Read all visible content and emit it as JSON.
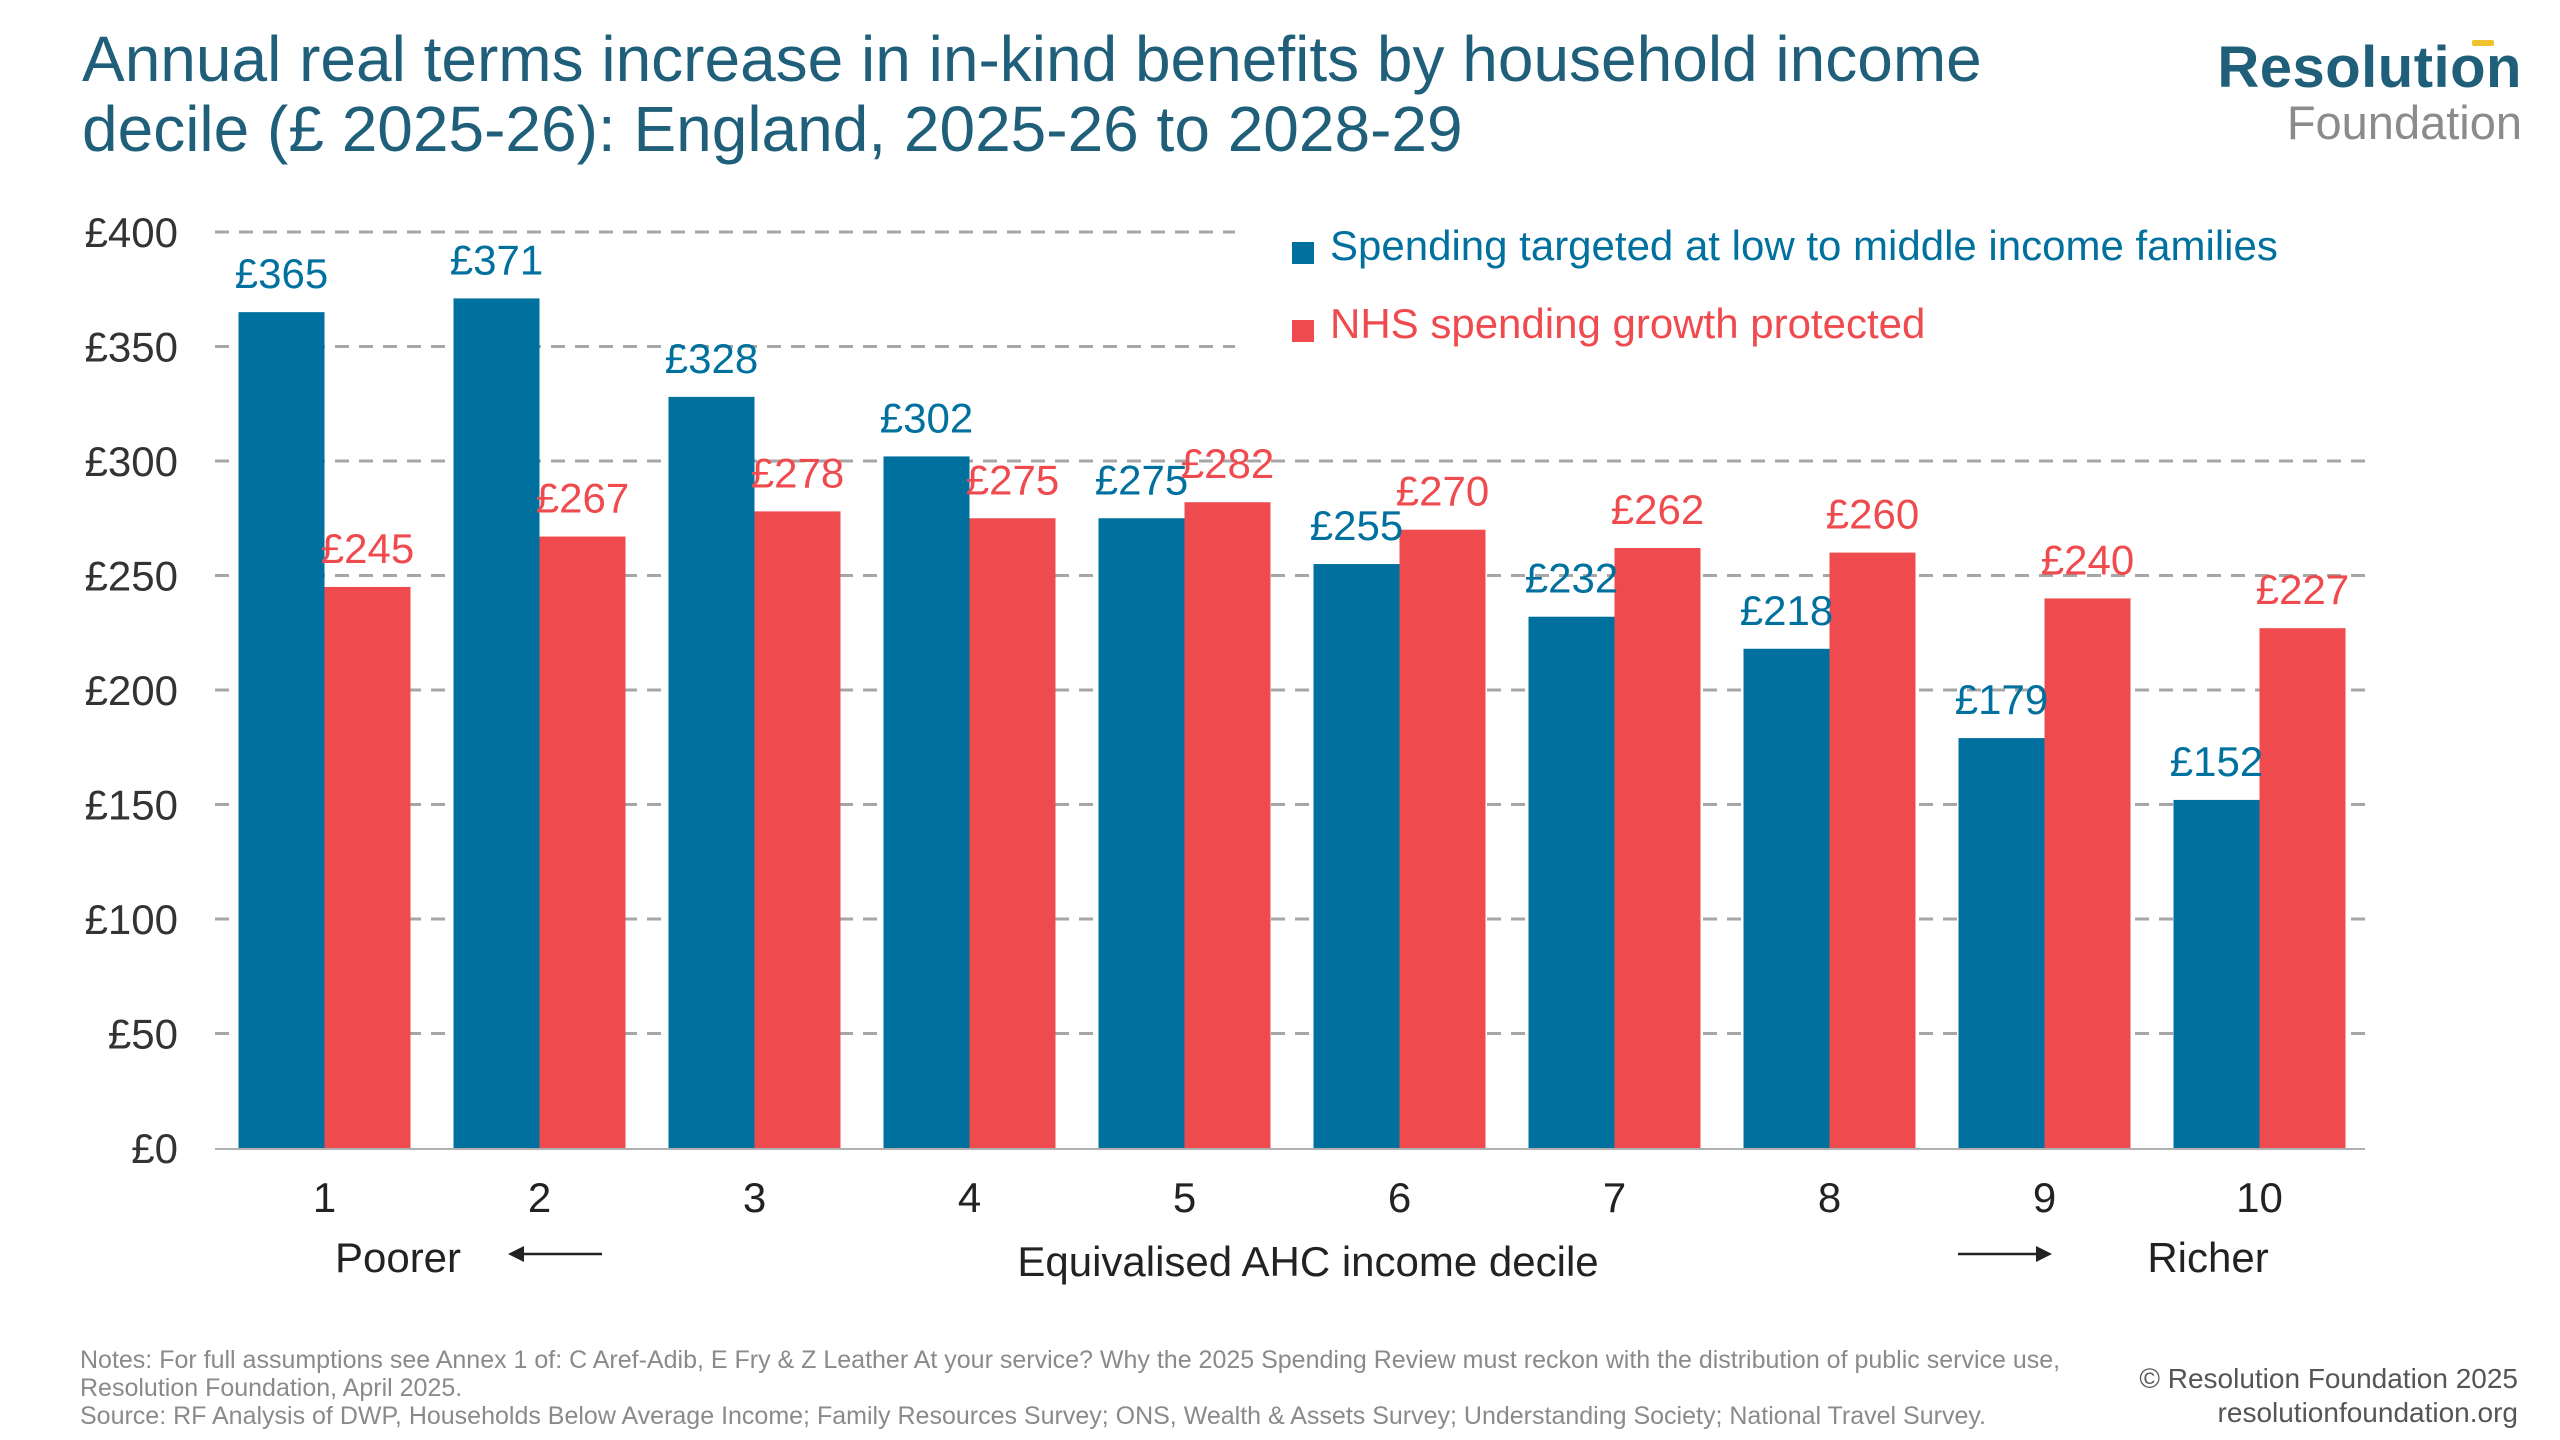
{
  "title": "Annual real terms increase in in-kind benefits by household income decile (£ 2025-26): England, 2025-26 to 2028-29",
  "logo": {
    "line1": "Resolution",
    "line2": "Foundation"
  },
  "notes": {
    "line1": "Notes: For full assumptions see Annex 1 of: C Aref-Adib, E Fry & Z Leather At your service? Why the 2025 Spending Review must reckon with the distribution of public service use, Resolution Foundation, April 2025.",
    "line2": "Source: RF Analysis of DWP, Households Below Average Income; Family Resources Survey; ONS, Wealth & Assets Survey; Understanding Society; National Travel Survey."
  },
  "copyright": {
    "line1": "© Resolution Foundation 2025",
    "line2": "resolutionfoundation.org"
  },
  "colors": {
    "blue": "#00709e",
    "red": "#ef4b4f",
    "grid": "#a6a6a6",
    "axis_text": "#333333"
  },
  "chart_data": {
    "type": "bar",
    "categories": [
      "1",
      "2",
      "3",
      "4",
      "5",
      "6",
      "7",
      "8",
      "9",
      "10"
    ],
    "series": [
      {
        "name": "Spending targeted at low to middle income families",
        "color": "#00709e",
        "values": [
          365,
          371,
          328,
          302,
          275,
          255,
          232,
          218,
          179,
          152
        ],
        "labels": [
          "£365",
          "£371",
          "£328",
          "£302",
          "£275",
          "£255",
          "£232",
          "£218",
          "£179",
          "£152"
        ]
      },
      {
        "name": "NHS spending growth protected",
        "color": "#ef4b4f",
        "values": [
          245,
          267,
          278,
          275,
          282,
          270,
          262,
          260,
          240,
          227
        ],
        "labels": [
          "£245",
          "£267",
          "£278",
          "£275",
          "£282",
          "£270",
          "£262",
          "£260",
          "£240",
          "£227"
        ]
      }
    ],
    "xlabel": "Equivalised AHC income decile",
    "x_annotations": {
      "left": "Poorer",
      "right": "Richer"
    },
    "ylim": [
      0,
      400
    ],
    "yticks": [
      0,
      50,
      100,
      150,
      200,
      250,
      300,
      350,
      400
    ],
    "ytick_labels": [
      "£0",
      "£50",
      "£100",
      "£150",
      "£200",
      "£250",
      "£300",
      "£350",
      "£400"
    ],
    "grid": "dashed horizontal",
    "legend_position": "top-right"
  }
}
